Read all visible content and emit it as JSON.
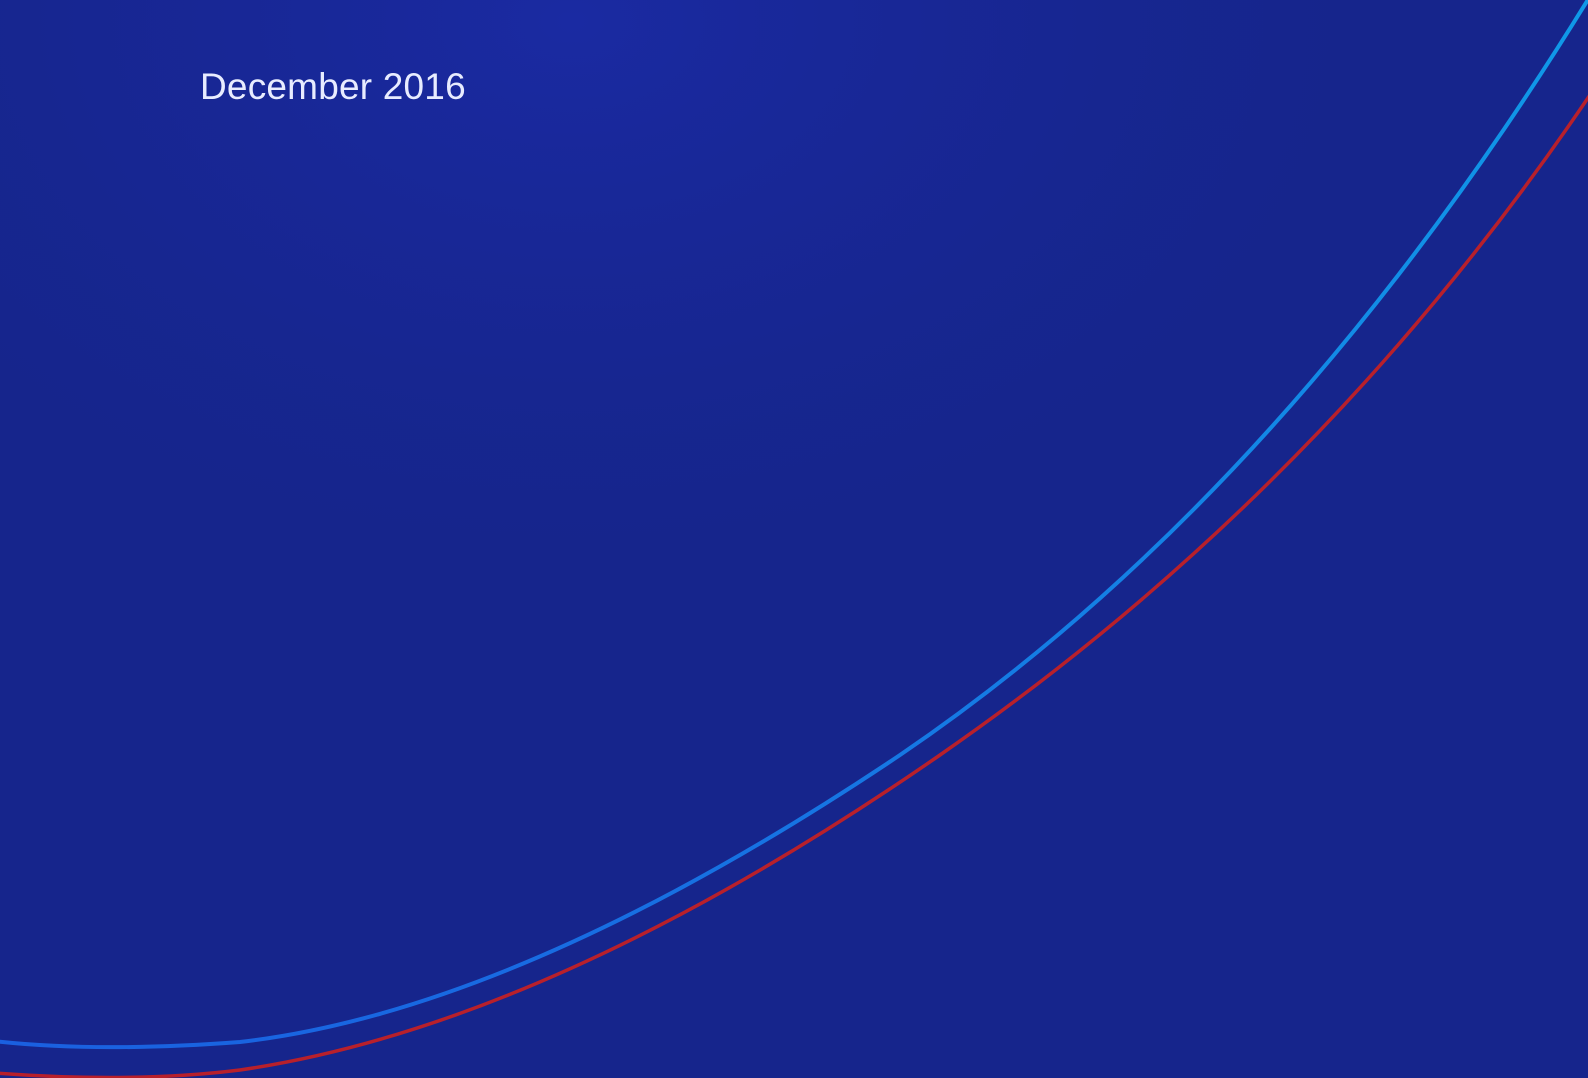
{
  "document": {
    "date": "December 2016"
  },
  "colors": {
    "background": "#16258c",
    "text": "#e8ecff",
    "blue_curve_start": "#1a5fe0",
    "blue_curve_end": "#0f9ae8",
    "red_curve": "#b8202b"
  }
}
